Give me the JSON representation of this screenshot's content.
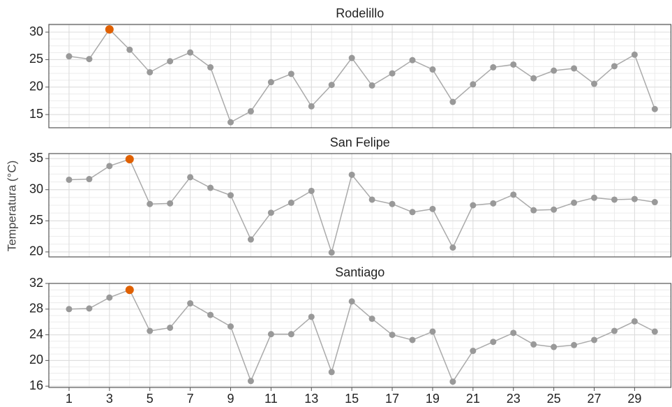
{
  "y_axis_label": "Temperatura (°C)",
  "chart_data": [
    {
      "type": "line",
      "title": "Rodelillo",
      "color": "#aaaaaa",
      "marker_color": "#999999",
      "highlight_color": "#e06000",
      "highlight_x": 3,
      "x": [
        1,
        2,
        3,
        4,
        5,
        6,
        7,
        8,
        9,
        10,
        11,
        12,
        13,
        14,
        15,
        16,
        17,
        18,
        19,
        20,
        21,
        22,
        23,
        24,
        25,
        26,
        27,
        28,
        29,
        30
      ],
      "values": [
        25.6,
        25.1,
        30.5,
        26.8,
        22.7,
        24.7,
        26.3,
        23.6,
        13.6,
        15.6,
        20.9,
        22.4,
        16.5,
        20.4,
        25.3,
        20.3,
        22.5,
        24.9,
        23.2,
        17.3,
        20.5,
        23.6,
        24.1,
        21.6,
        23.0,
        23.4,
        20.6,
        23.8,
        25.9,
        16.0
      ],
      "xlim": [
        0,
        30.8
      ],
      "xticks": [
        1,
        3,
        5,
        7,
        9,
        11,
        13,
        15,
        17,
        19,
        21,
        23,
        25,
        27,
        29
      ],
      "xtick_labels": false,
      "ylim": [
        12.6,
        31.4
      ],
      "yticks": [
        15,
        20,
        25,
        30
      ],
      "grid": true
    },
    {
      "type": "line",
      "title": "San Felipe",
      "color": "#aaaaaa",
      "marker_color": "#999999",
      "highlight_color": "#e06000",
      "highlight_x": 4,
      "x": [
        1,
        2,
        3,
        4,
        5,
        6,
        7,
        8,
        9,
        10,
        11,
        12,
        13,
        14,
        15,
        16,
        17,
        18,
        19,
        20,
        21,
        22,
        23,
        24,
        25,
        26,
        27,
        28,
        29,
        30
      ],
      "values": [
        31.6,
        31.7,
        33.8,
        34.9,
        27.7,
        27.8,
        32.0,
        30.3,
        29.1,
        22.0,
        26.3,
        27.9,
        29.8,
        19.9,
        32.4,
        28.4,
        27.7,
        26.4,
        26.9,
        20.7,
        27.5,
        27.8,
        29.2,
        26.7,
        26.8,
        27.9,
        28.7,
        28.4,
        28.5,
        28.0
      ],
      "xlim": [
        0,
        30.8
      ],
      "xticks": [
        1,
        3,
        5,
        7,
        9,
        11,
        13,
        15,
        17,
        19,
        21,
        23,
        25,
        27,
        29
      ],
      "xtick_labels": false,
      "ylim": [
        19.2,
        35.8
      ],
      "yticks": [
        20,
        25,
        30,
        35
      ],
      "grid": true
    },
    {
      "type": "line",
      "title": "Santiago",
      "color": "#aaaaaa",
      "marker_color": "#999999",
      "highlight_color": "#e06000",
      "highlight_x": 4,
      "x": [
        1,
        2,
        3,
        4,
        5,
        6,
        7,
        8,
        9,
        10,
        11,
        12,
        13,
        14,
        15,
        16,
        17,
        18,
        19,
        20,
        21,
        22,
        23,
        24,
        25,
        26,
        27,
        28,
        29,
        30
      ],
      "values": [
        28.0,
        28.1,
        29.8,
        31.0,
        24.6,
        25.1,
        28.9,
        27.1,
        25.3,
        16.8,
        24.1,
        24.1,
        26.8,
        18.2,
        29.2,
        26.5,
        24.0,
        23.2,
        24.5,
        16.7,
        21.5,
        22.9,
        24.3,
        22.5,
        22.1,
        22.4,
        23.2,
        24.6,
        26.1,
        24.5
      ],
      "xlim": [
        0,
        30.8
      ],
      "xticks": [
        1,
        3,
        5,
        7,
        9,
        11,
        13,
        15,
        17,
        19,
        21,
        23,
        25,
        27,
        29
      ],
      "xtick_labels": true,
      "ylim": [
        15.8,
        32
      ],
      "yticks": [
        16,
        20,
        24,
        28,
        32
      ],
      "grid": true
    }
  ]
}
